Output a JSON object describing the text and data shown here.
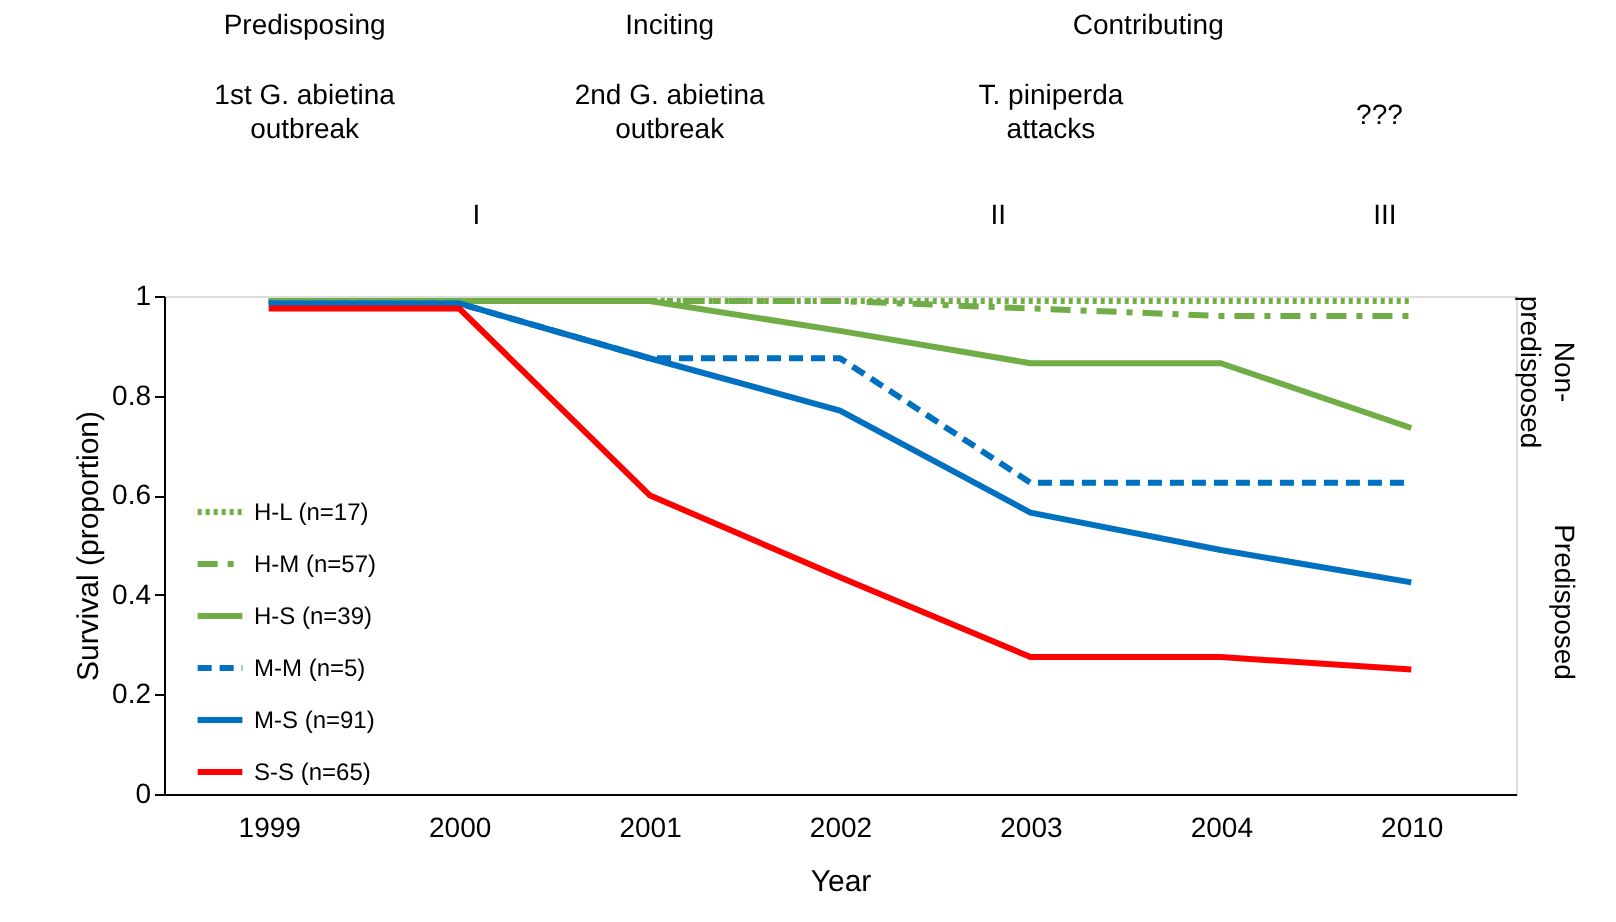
{
  "chart_data": {
    "type": "line",
    "categories": [
      "1999",
      "2000",
      "2001",
      "2002",
      "2003",
      "2004",
      "2010"
    ],
    "xlabel": "Year",
    "ylabel": "Survival (proportion)",
    "ylim": [
      0,
      1
    ],
    "yticks": [
      0,
      0.2,
      0.4,
      0.6,
      0.8,
      1
    ],
    "grid": false,
    "legend": "left",
    "marker": "none",
    "series": [
      {
        "name": "H-L (n=17)",
        "color": "#70ad47",
        "line_style": "dotted",
        "values": [
          0.99,
          0.99,
          0.99,
          0.99,
          0.99,
          0.99,
          0.99
        ]
      },
      {
        "name": "H-M (n=57)",
        "color": "#70ad47",
        "line_style": "dashdot",
        "values": [
          0.99,
          0.99,
          0.99,
          0.99,
          0.975,
          0.96,
          0.96
        ]
      },
      {
        "name": "H-S (n=39)",
        "color": "#70ad47",
        "line_style": "solid",
        "values": [
          0.99,
          0.99,
          0.99,
          0.93,
          0.865,
          0.865,
          0.735
        ]
      },
      {
        "name": "M-M (n=5)",
        "color": "#0070c0",
        "line_style": "dashed",
        "values": [
          0.985,
          0.985,
          0.875,
          0.875,
          0.625,
          0.625,
          0.625
        ]
      },
      {
        "name": "M-S (n=91)",
        "color": "#0070c0",
        "line_style": "solid",
        "values": [
          0.985,
          0.985,
          0.875,
          0.77,
          0.565,
          0.49,
          0.425
        ]
      },
      {
        "name": "S-S (n=65)",
        "color": "#ff0000",
        "line_style": "solid",
        "values": [
          0.975,
          0.975,
          0.6,
          0.435,
          0.275,
          0.275,
          0.25
        ]
      }
    ],
    "annotations": [
      "Predisposing",
      "Inciting",
      "Contributing",
      "1st G. abietina\noutbreak",
      "2nd G. abietina\noutbreak",
      "T. piniperda\nattacks",
      "???",
      "I",
      "II",
      "III",
      "Non-\npredisposed",
      "Predisposed"
    ]
  }
}
